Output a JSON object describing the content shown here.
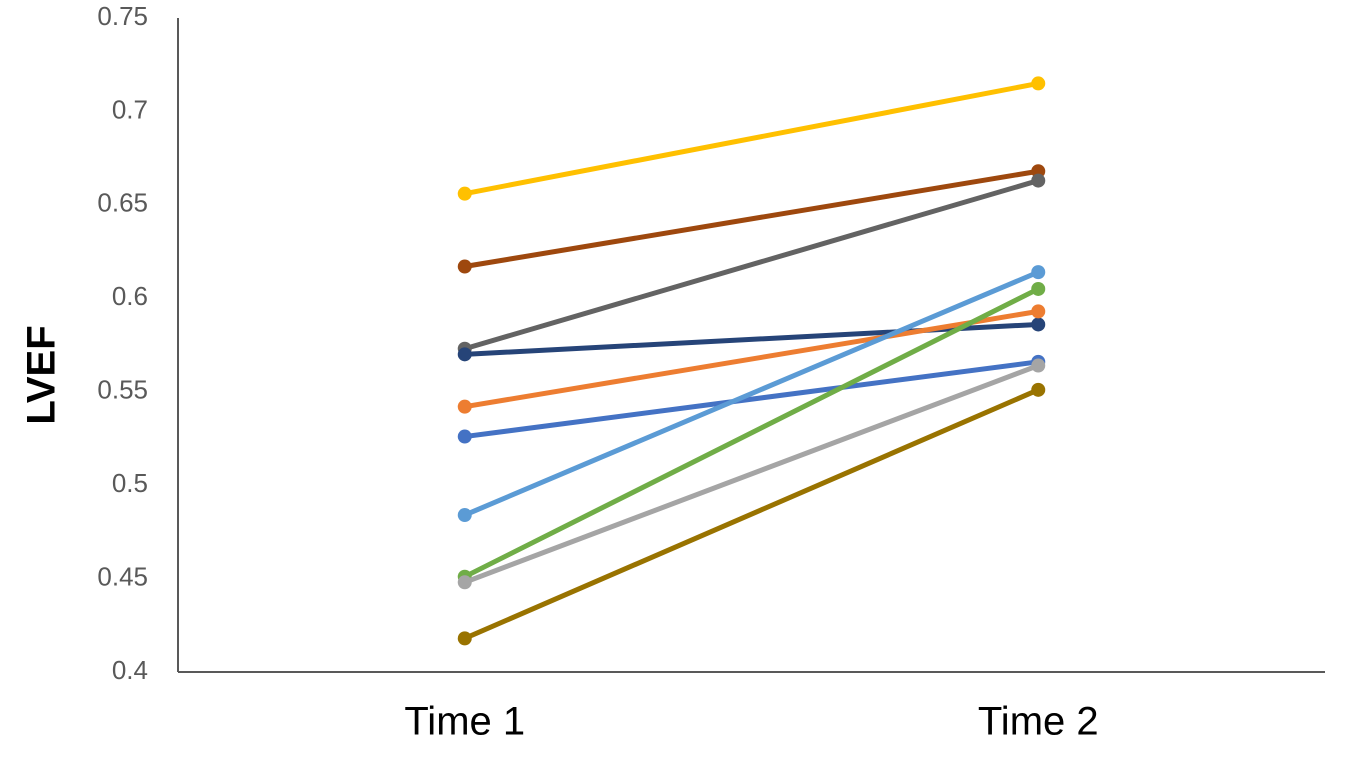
{
  "chart_data": {
    "type": "line",
    "y_label": "LVEF",
    "categories": [
      "Time 1",
      "Time 2"
    ],
    "series": [
      {
        "color": "#ffc000",
        "values": [
          0.656,
          0.715
        ]
      },
      {
        "color": "#9e480e",
        "values": [
          0.617,
          0.668
        ]
      },
      {
        "color": "#636363",
        "values": [
          0.573,
          0.663
        ]
      },
      {
        "color": "#264478",
        "values": [
          0.57,
          0.586
        ]
      },
      {
        "color": "#ed7d31",
        "values": [
          0.542,
          0.593
        ]
      },
      {
        "color": "#4472c4",
        "values": [
          0.526,
          0.566
        ]
      },
      {
        "color": "#5b9bd5",
        "values": [
          0.484,
          0.614
        ]
      },
      {
        "color": "#70ad47",
        "values": [
          0.451,
          0.605
        ]
      },
      {
        "color": "#a5a5a5",
        "values": [
          0.448,
          0.564
        ]
      },
      {
        "color": "#997300",
        "values": [
          0.418,
          0.551
        ]
      }
    ],
    "ylim": [
      0.4,
      0.75
    ],
    "yticks": [
      0.4,
      0.45,
      0.5,
      0.55,
      0.6,
      0.65,
      0.7,
      0.75
    ],
    "grid": false
  }
}
